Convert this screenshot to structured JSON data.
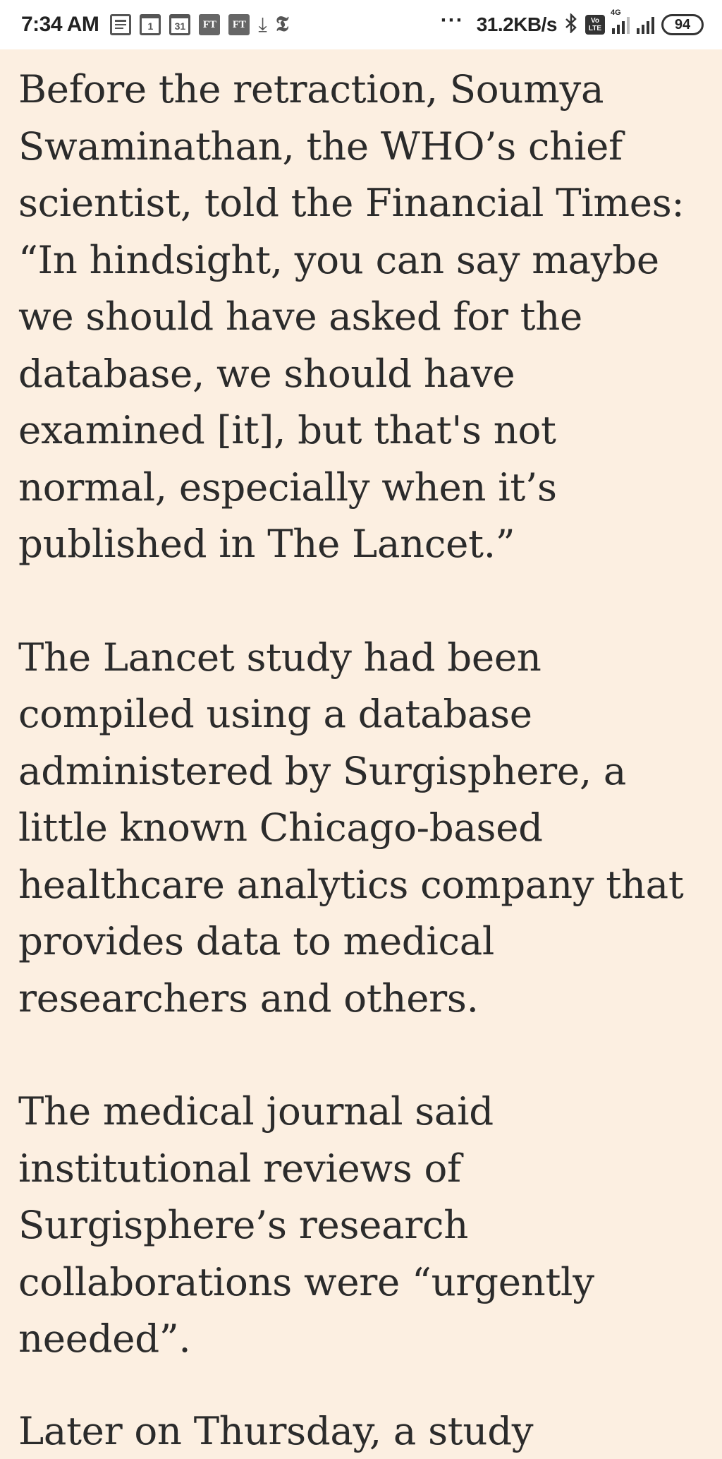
{
  "status_bar": {
    "time": "7:34 AM",
    "left_icons": [
      {
        "name": "news-icon",
        "text": ""
      },
      {
        "name": "calendar-1-icon",
        "text": "1"
      },
      {
        "name": "calendar-31-icon",
        "text": "31"
      },
      {
        "name": "ft-icon",
        "text": "FT"
      },
      {
        "name": "ft-icon",
        "text": "FT"
      },
      {
        "name": "download-icon",
        "text": "⤓"
      },
      {
        "name": "nyt-icon",
        "text": "𝕿"
      }
    ],
    "more": "···",
    "net_speed": "31.2KB/s",
    "volte_top": "Vo",
    "volte_bottom": "LTE",
    "network_type": "4G",
    "battery": "94"
  },
  "article": {
    "paragraphs": [
      {
        "lines": [
          "Before the retraction, Soumya",
          "Swaminathan, the WHO’s chief",
          "scientist, told the Financial Times:",
          "“In hindsight, you can say maybe",
          "we should have asked for the",
          "database, we should have",
          "examined [it], but that's not",
          "normal, especially when it’s",
          "published in The Lancet.”"
        ]
      },
      {
        "lines": [
          "The Lancet study had been",
          "compiled using a database",
          "administered by Surgisphere, a",
          "little known Chicago-based",
          "healthcare analytics company that",
          "provides data to medical",
          "researchers and others."
        ]
      },
      {
        "lines": [
          "The medical journal said",
          "institutional reviews of",
          "Surgisphere’s research",
          "collaborations were “urgently",
          "needed”."
        ]
      },
      {
        "lines": [
          "Later on Thursday, a study"
        ]
      }
    ]
  }
}
